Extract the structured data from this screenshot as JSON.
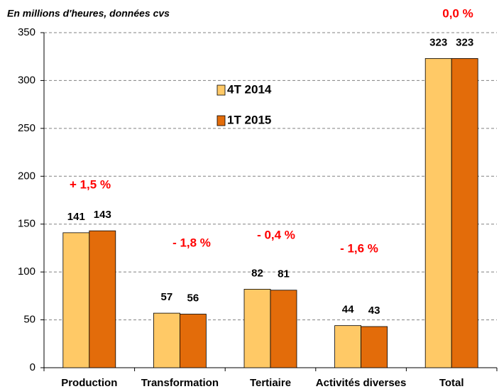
{
  "chart_data": {
    "type": "bar",
    "title": "En millions d'heures, données  cvs",
    "categories": [
      "Production",
      "Transformation",
      "Tertiaire",
      "Activités diverses",
      "Total"
    ],
    "series": [
      {
        "name": "4T 2014",
        "color": "#ffc966",
        "values": [
          141,
          57,
          82,
          44,
          323
        ]
      },
      {
        "name": "1T 2015",
        "color": "#e36c0a",
        "values": [
          143,
          56,
          81,
          43,
          323
        ]
      }
    ],
    "annotations": [
      "+ 1,5 %",
      "- 1,8 %",
      "- 0,4 %",
      "- 1,6 %",
      "0,0 %"
    ],
    "ylim": [
      0,
      350
    ],
    "yticks": [
      0,
      50,
      100,
      150,
      200,
      250,
      300,
      350
    ],
    "grid": true
  }
}
